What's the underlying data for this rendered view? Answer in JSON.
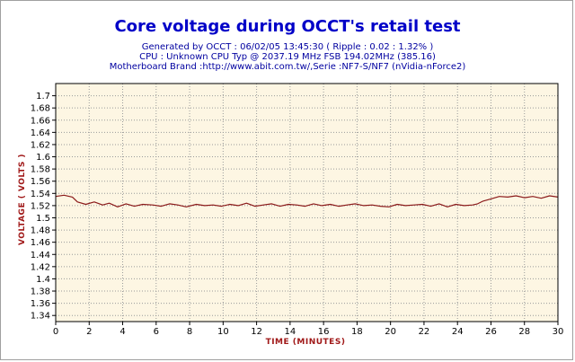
{
  "colors": {
    "title": "#0000c8",
    "subtitle": "#0000a0",
    "axis_label": "#a01818",
    "plot_background": "#fdf6e3",
    "grid": "#9a9a9a",
    "series_line": "#8b1a1a"
  },
  "chart_data": {
    "type": "line",
    "title": "Core voltage during OCCT's retail test",
    "subtitle_lines": [
      "Generated by OCCT : 06/02/05 13:45:30 ( Ripple : 0.02 : 1.32% )",
      "CPU : Unknown CPU Typ @ 2037.19 MHz FSB 194.02MHz (385.16)",
      "Motherboard Brand :http://www.abit.com.tw/,Serie :NF7-S/NF7 (nVidia-nForce2)"
    ],
    "xlabel": "TIME (MINUTES)",
    "ylabel": "VOLTAGE ( VOLTS )",
    "xlim": [
      0,
      30
    ],
    "ylim": [
      1.33,
      1.72
    ],
    "xticks": [
      "0",
      "2",
      "4",
      "6",
      "8",
      "10",
      "12",
      "14",
      "16",
      "18",
      "20",
      "22",
      "24",
      "26",
      "28",
      "30"
    ],
    "yticks": [
      "1.34",
      "1.36",
      "1.38",
      "1.4",
      "1.42",
      "1.44",
      "1.46",
      "1.48",
      "1.5",
      "1.52",
      "1.54",
      "1.56",
      "1.58",
      "1.6",
      "1.62",
      "1.64",
      "1.66",
      "1.68",
      "1.7"
    ],
    "grid": true,
    "series": [
      {
        "x": [
          0,
          0.5,
          1,
          1.3,
          1.8,
          2.3,
          2.8,
          3.2,
          3.7,
          4.2,
          4.7,
          5.2,
          5.8,
          6.3,
          6.8,
          7.3,
          7.8,
          8.4,
          8.9,
          9.4,
          9.9,
          10.4,
          10.9,
          11.4,
          11.9,
          12.4,
          12.9,
          13.4,
          13.9,
          14.4,
          14.9,
          15.4,
          15.9,
          16.4,
          16.9,
          17.4,
          17.9,
          18.4,
          18.9,
          19.4,
          19.9,
          20.4,
          20.9,
          21.4,
          21.9,
          22.4,
          22.9,
          23.4,
          23.9,
          24.4,
          24.9,
          25.2,
          25.5,
          26,
          26.5,
          27,
          27.5,
          28,
          28.5,
          29,
          29.5,
          30
        ],
        "values": [
          1.535,
          1.537,
          1.534,
          1.526,
          1.522,
          1.526,
          1.521,
          1.524,
          1.518,
          1.523,
          1.519,
          1.522,
          1.521,
          1.519,
          1.523,
          1.521,
          1.518,
          1.522,
          1.52,
          1.521,
          1.519,
          1.522,
          1.52,
          1.524,
          1.519,
          1.521,
          1.523,
          1.519,
          1.522,
          1.521,
          1.519,
          1.523,
          1.52,
          1.522,
          1.519,
          1.521,
          1.523,
          1.52,
          1.521,
          1.519,
          1.518,
          1.522,
          1.52,
          1.521,
          1.522,
          1.519,
          1.523,
          1.518,
          1.522,
          1.52,
          1.521,
          1.523,
          1.527,
          1.531,
          1.535,
          1.534,
          1.536,
          1.533,
          1.535,
          1.532,
          1.536,
          1.534
        ]
      }
    ]
  }
}
